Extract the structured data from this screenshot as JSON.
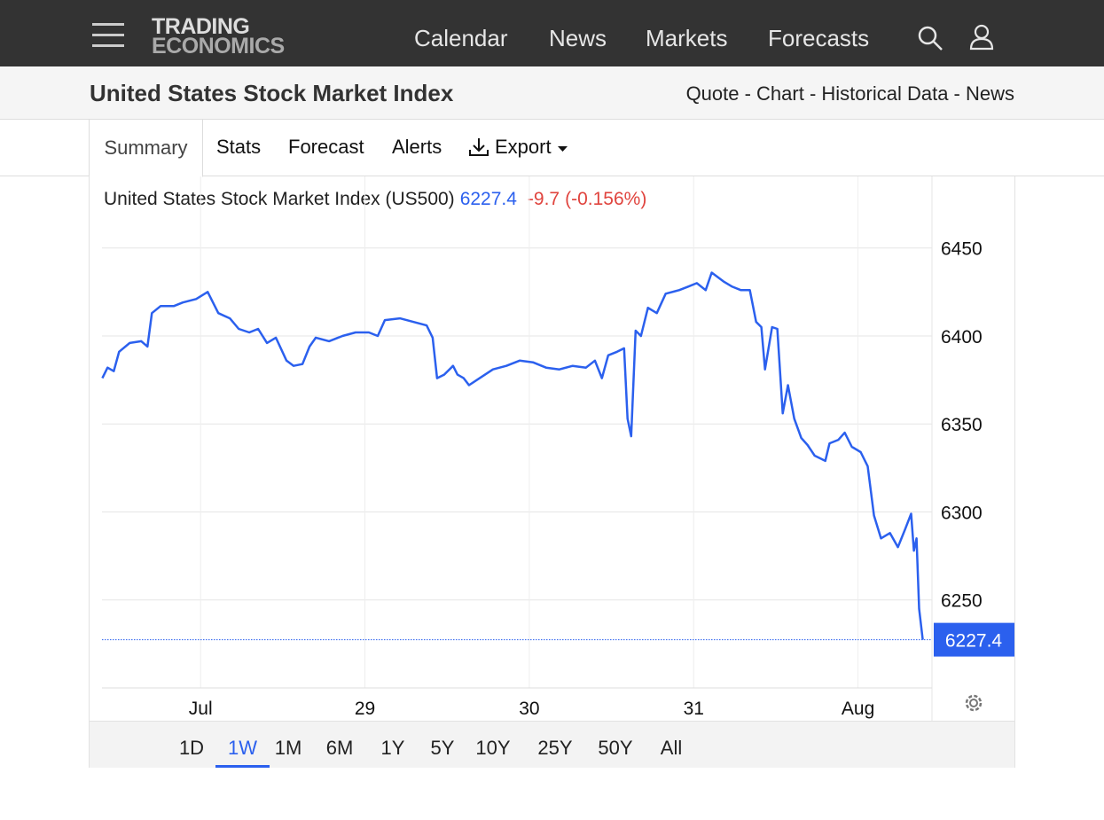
{
  "header": {
    "logo_top": "TRADING",
    "logo_bottom": "ECONOMICS",
    "nav": [
      "Calendar",
      "News",
      "Markets",
      "Forecasts"
    ]
  },
  "title_bar": {
    "title": "United States Stock Market Index",
    "links": "Quote - Chart - Historical Data - News"
  },
  "tabs": {
    "items": [
      "Summary",
      "Stats",
      "Forecast",
      "Alerts",
      "Export"
    ],
    "active": 0
  },
  "range_buttons": {
    "items": [
      "1D",
      "1W",
      "1M",
      "6M",
      "1Y",
      "5Y",
      "10Y",
      "25Y",
      "50Y",
      "All"
    ],
    "active": 1
  },
  "chart_data": {
    "type": "line",
    "title": "United States Stock Market Index (US500)",
    "change": -9.7,
    "change_pct": "(-0.156%)",
    "color": "#2b60ee",
    "grid": true,
    "last_value_line": true,
    "x": [
      27.402,
      27.434,
      27.472,
      27.504,
      27.569,
      27.639,
      27.677,
      27.704,
      27.757,
      27.838,
      27.892,
      27.973,
      28.043,
      28.108,
      28.178,
      28.232,
      28.296,
      28.35,
      28.404,
      28.458,
      28.523,
      28.566,
      28.62,
      28.663,
      28.701,
      28.782,
      28.863,
      28.943,
      29.024,
      29.078,
      29.121,
      29.213,
      29.294,
      29.375,
      29.412,
      29.439,
      29.482,
      29.536,
      29.563,
      29.601,
      29.633,
      29.698,
      29.779,
      29.86,
      29.941,
      30.022,
      30.102,
      30.183,
      30.264,
      30.345,
      30.399,
      30.442,
      30.48,
      30.534,
      30.577,
      30.598,
      30.62,
      30.647,
      30.679,
      30.722,
      30.776,
      30.83,
      30.911,
      30.965,
      31.019,
      31.073,
      31.11,
      31.181,
      31.235,
      31.288,
      31.342,
      31.38,
      31.412,
      31.434,
      31.477,
      31.509,
      31.542,
      31.574,
      31.612,
      31.655,
      31.693,
      31.736,
      31.801,
      31.827,
      31.881,
      31.919,
      31.962,
      32.016,
      32.059,
      32.097,
      32.14,
      32.194,
      32.243,
      32.286,
      32.323,
      32.34,
      32.356,
      32.372,
      32.394
    ],
    "values": [
      6376,
      6382,
      6380,
      6391,
      6396,
      6397,
      6394,
      6413,
      6417,
      6417,
      6419,
      6421,
      6425,
      6413,
      6410,
      6404,
      6402,
      6404,
      6396,
      6399,
      6386,
      6383,
      6384,
      6394,
      6399,
      6397,
      6400,
      6402,
      6402,
      6400,
      6409,
      6410,
      6408,
      6406,
      6399,
      6376,
      6378,
      6383,
      6378,
      6376,
      6372,
      6376,
      6381,
      6383,
      6386,
      6385,
      6382,
      6381,
      6383,
      6382,
      6386,
      6376,
      6389,
      6391,
      6393,
      6353,
      6343,
      6403,
      6400,
      6416,
      6413,
      6424,
      6426,
      6428,
      6430,
      6426,
      6436,
      6431,
      6428,
      6426,
      6426,
      6408,
      6405,
      6381,
      6405,
      6404,
      6356,
      6372,
      6353,
      6342,
      6338,
      6332,
      6329,
      6339,
      6341,
      6345,
      6337,
      6334,
      6326,
      6298,
      6285,
      6288,
      6280,
      6290,
      6299,
      6278,
      6285,
      6245,
      6227.4
    ],
    "xlim": [
      27.4,
      32.45
    ],
    "xticks": [
      {
        "value": 28,
        "label": "Jul"
      },
      29,
      30,
      31,
      {
        "value": 32,
        "label": "Aug"
      }
    ],
    "ylim": [
      6200,
      6470
    ],
    "yticks": [
      6250,
      6300,
      6350,
      6400,
      6450
    ]
  }
}
